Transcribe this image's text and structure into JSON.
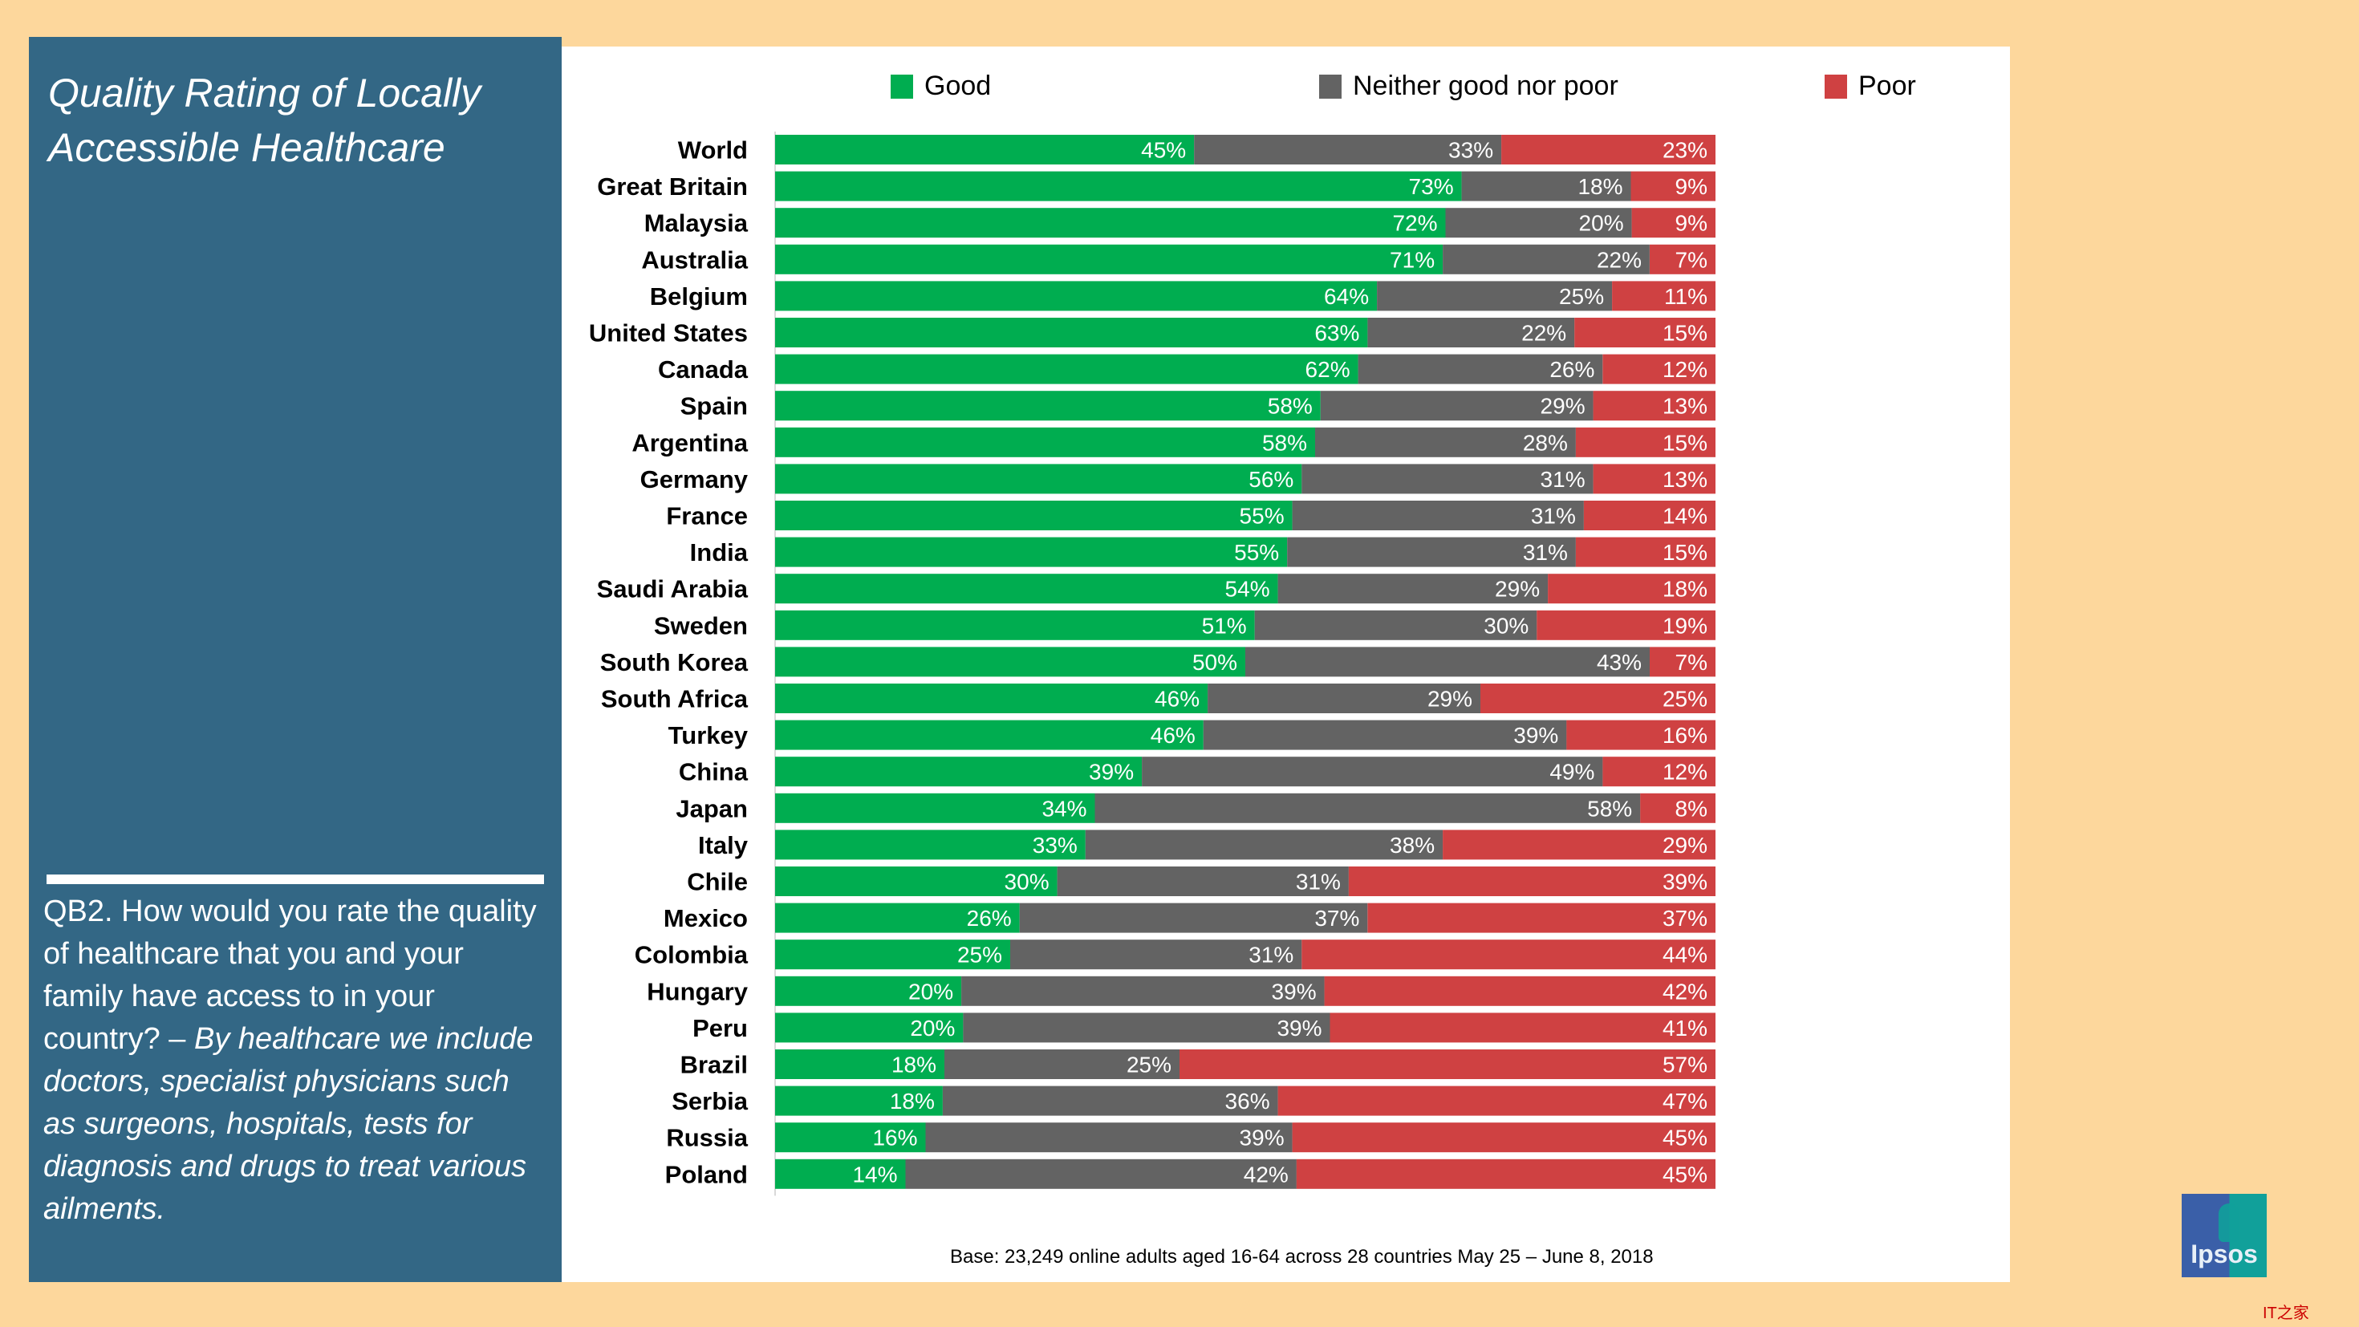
{
  "panel": {
    "title": "Quality Rating of Locally Accessible Healthcare",
    "question_plain": "QB2. How would you rate the quality of healthcare that you and your family have access to in your country? – ",
    "question_italic": "By healthcare we include doctors, specialist physicians such as surgeons, hospitals, tests for diagnosis and drugs to treat various ailments."
  },
  "footer": {
    "base_note": "Base: 23,249 online adults aged 16-64 across 28 countries  May 25 – June 8, 2018",
    "logo_text": "Ipsos",
    "watermark": "IT之家"
  },
  "colors": {
    "good": "#00ad50",
    "neither": "#636363",
    "poor": "#cf4142",
    "panel_bg": "#336785",
    "page_bg": "#fdd79c"
  },
  "chart_data": {
    "type": "bar",
    "orientation": "horizontal",
    "stacked": true,
    "title": "Quality Rating of Locally Accessible Healthcare",
    "xlabel": "",
    "ylabel": "",
    "xlim": [
      0,
      100
    ],
    "unit": "%",
    "legend": {
      "placement": "top",
      "entries": [
        "Good",
        "Neither good nor poor",
        "Poor"
      ]
    },
    "categories": [
      "World",
      "Great Britain",
      "Malaysia",
      "Australia",
      "Belgium",
      "United States",
      "Canada",
      "Spain",
      "Argentina",
      "Germany",
      "France",
      "India",
      "Saudi Arabia",
      "Sweden",
      "South Korea",
      "South Africa",
      "Turkey",
      "China",
      "Japan",
      "Italy",
      "Chile",
      "Mexico",
      "Colombia",
      "Hungary",
      "Peru",
      "Brazil",
      "Serbia",
      "Russia",
      "Poland"
    ],
    "series": [
      {
        "name": "Good",
        "color": "#00ad50",
        "values": [
          45,
          73,
          72,
          71,
          64,
          63,
          62,
          58,
          58,
          56,
          55,
          55,
          54,
          51,
          50,
          46,
          46,
          39,
          34,
          33,
          30,
          26,
          25,
          20,
          20,
          18,
          18,
          16,
          14
        ]
      },
      {
        "name": "Neither good nor poor",
        "color": "#636363",
        "values": [
          33,
          18,
          20,
          22,
          25,
          22,
          26,
          29,
          28,
          31,
          31,
          31,
          29,
          30,
          43,
          29,
          39,
          49,
          58,
          38,
          31,
          37,
          31,
          39,
          39,
          25,
          36,
          39,
          42
        ]
      },
      {
        "name": "Poor",
        "color": "#cf4142",
        "values": [
          23,
          9,
          9,
          7,
          11,
          15,
          12,
          13,
          15,
          13,
          14,
          15,
          18,
          19,
          7,
          25,
          16,
          12,
          8,
          29,
          39,
          37,
          44,
          42,
          41,
          57,
          47,
          45,
          45
        ]
      }
    ]
  }
}
